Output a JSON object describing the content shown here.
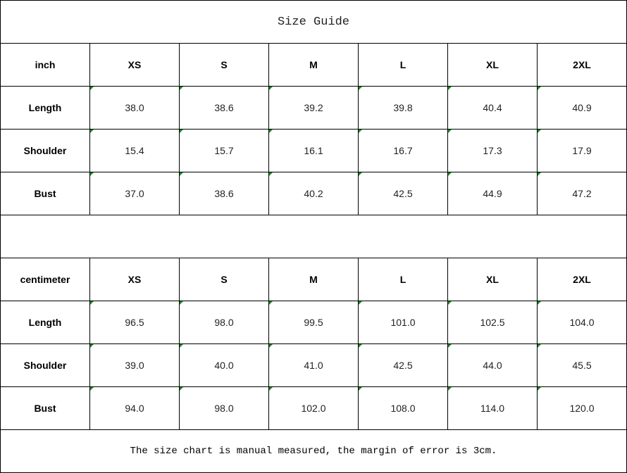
{
  "title": "Size Guide",
  "sizes": [
    "XS",
    "S",
    "M",
    "L",
    "XL",
    "2XL"
  ],
  "inch": {
    "unit_label": "inch",
    "rows": [
      {
        "label": "Length",
        "values": [
          "38.0",
          "38.6",
          "39.2",
          "39.8",
          "40.4",
          "40.9"
        ]
      },
      {
        "label": "Shoulder",
        "values": [
          "15.4",
          "15.7",
          "16.1",
          "16.7",
          "17.3",
          "17.9"
        ]
      },
      {
        "label": "Bust",
        "values": [
          "37.0",
          "38.6",
          "40.2",
          "42.5",
          "44.9",
          "47.2"
        ]
      }
    ]
  },
  "centimeter": {
    "unit_label": "centimeter",
    "rows": [
      {
        "label": "Length",
        "values": [
          "96.5",
          "98.0",
          "99.5",
          "101.0",
          "102.5",
          "104.0"
        ]
      },
      {
        "label": "Shoulder",
        "values": [
          "39.0",
          "40.0",
          "41.0",
          "42.5",
          "44.0",
          "45.5"
        ]
      },
      {
        "label": "Bust",
        "values": [
          "94.0",
          "98.0",
          "102.0",
          "108.0",
          "114.0",
          "120.0"
        ]
      }
    ]
  },
  "note": "The size chart is manual measured, the margin of error is 3cm.",
  "colors": {
    "error_indicator": "#1a8a1a",
    "border": "#000000"
  }
}
